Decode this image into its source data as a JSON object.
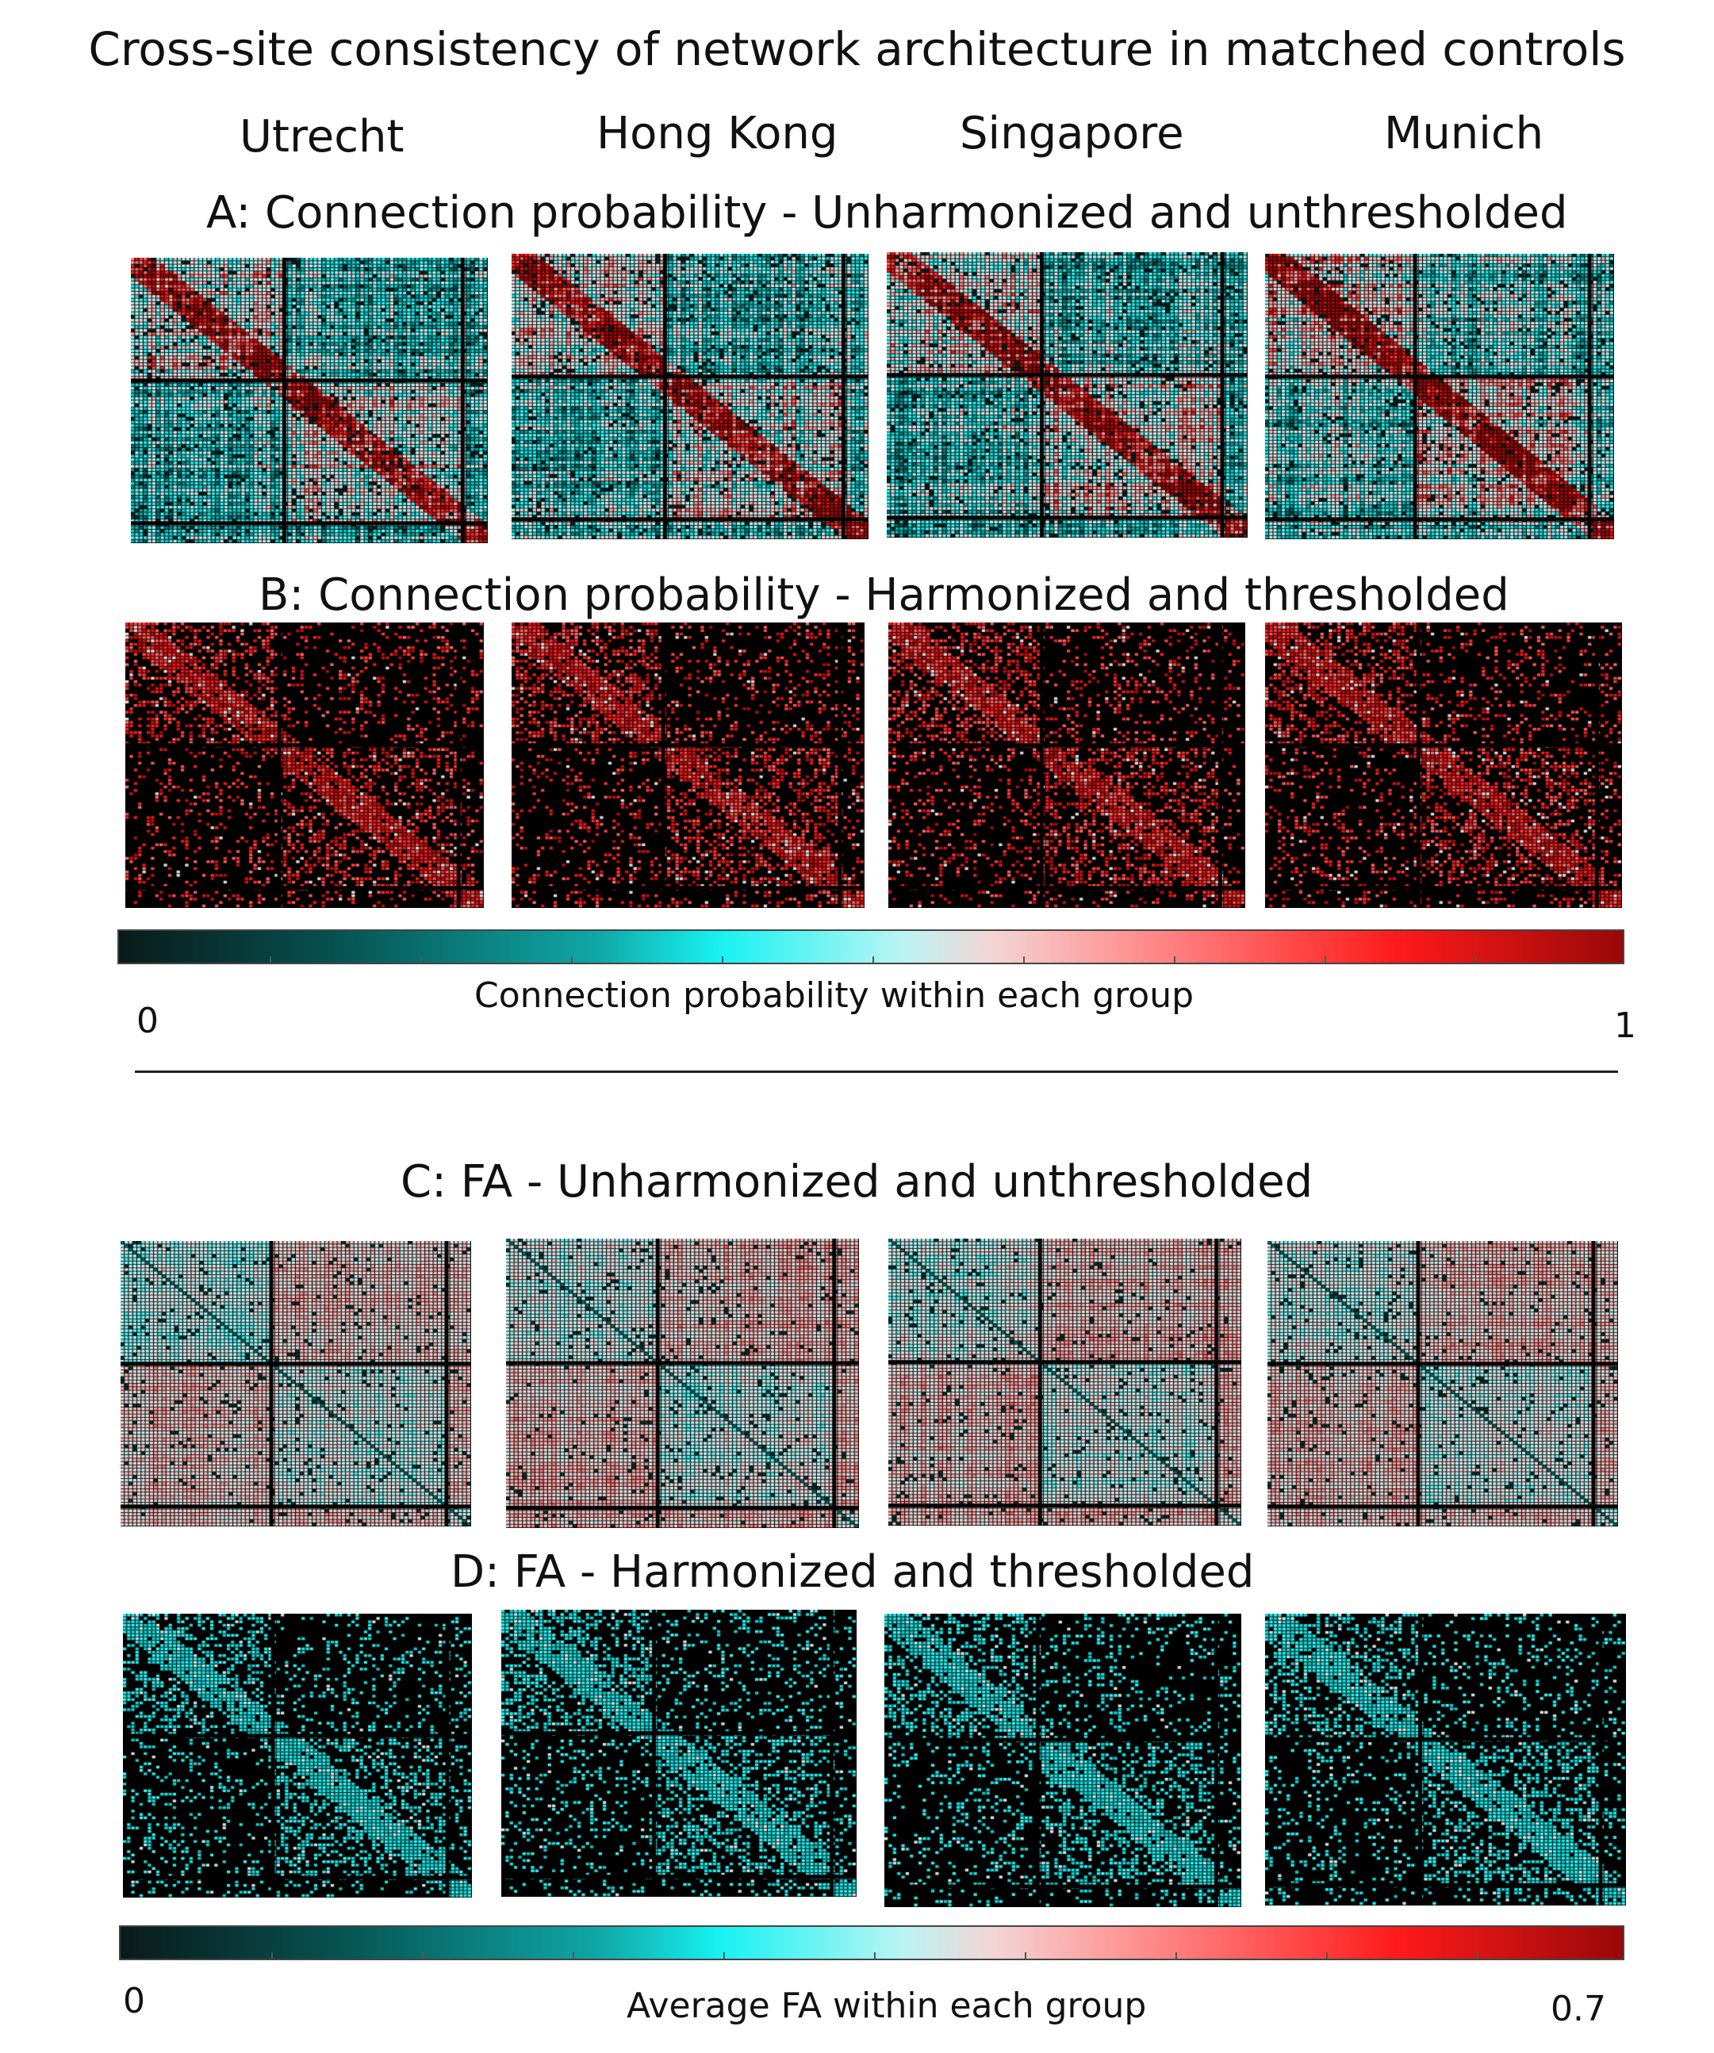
{
  "chart_data": {
    "type": "heatmap",
    "title": "Cross-site consistency of network architecture in matched controls",
    "sites": [
      "Utrecht",
      "Hong Kong",
      "Singapore",
      "Munich"
    ],
    "panels": [
      {
        "id": "A",
        "label": "A: Connection probability - Unharmonized and unthresholded",
        "measure": "connection_probability",
        "harmonized": false,
        "thresholded": false
      },
      {
        "id": "B",
        "label": "B: Connection probability - Harmonized and thresholded",
        "measure": "connection_probability",
        "harmonized": true,
        "thresholded": true
      },
      {
        "id": "C",
        "label": "C: FA - Unharmonized and unthresholded",
        "measure": "fa",
        "harmonized": false,
        "thresholded": false
      },
      {
        "id": "D",
        "label": "D: FA - Harmonized and thresholded",
        "measure": "fa",
        "harmonized": true,
        "thresholded": true
      }
    ],
    "colorbars": [
      {
        "label": "Connection probability within each group",
        "min": "0",
        "max": "1",
        "colormap": [
          "#0a1a1a",
          "#0fa9a8",
          "#18f2f2",
          "#f3d5d5",
          "#ff1a1a",
          "#990808"
        ]
      },
      {
        "label": "Average FA within each group",
        "min": "0",
        "max": "0.7",
        "colormap": [
          "#0a1a1a",
          "#0fa9a8",
          "#18f2f2",
          "#f3d5d5",
          "#ff1a1a",
          "#990808"
        ]
      }
    ]
  }
}
